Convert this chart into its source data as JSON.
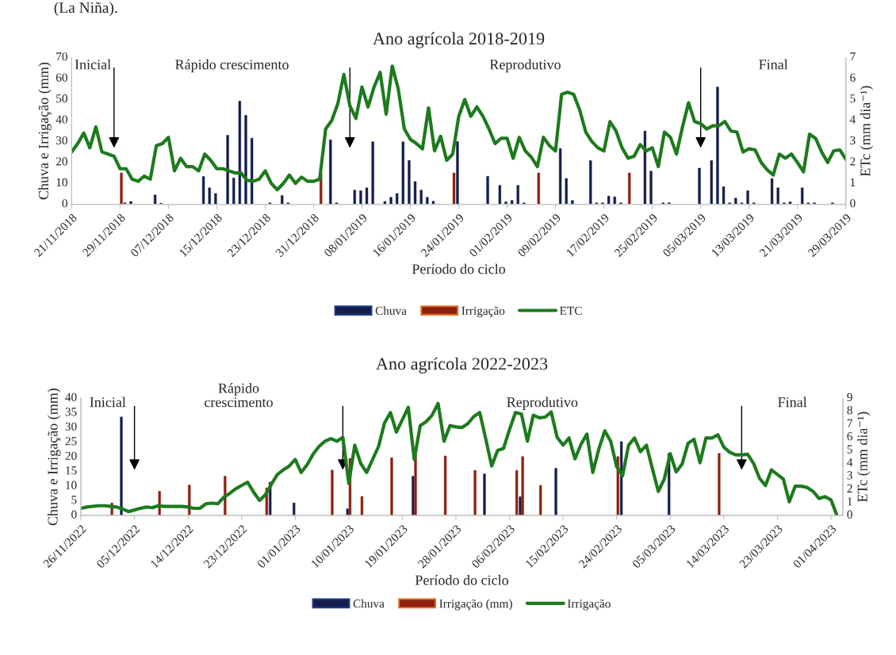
{
  "chart_data": [
    {
      "type": "bar",
      "title": "Ano agrícola 2018-2019",
      "xlabel": "Período do ciclo",
      "ylabel": "Chuva e Irrigação (mm)",
      "y2label": "ETc (mm dia⁻¹)",
      "xlim": [
        "2018-11-21",
        "2019-03-29"
      ],
      "xticks": [
        {
          "value": "2018-11-21",
          "label": "21/11/2018"
        },
        {
          "value": "2018-11-29",
          "label": "29/11/2018"
        },
        {
          "value": "2018-12-07",
          "label": "07/12/2018"
        },
        {
          "value": "2018-12-15",
          "label": "15/12/2018"
        },
        {
          "value": "2018-12-23",
          "label": "23/12/2018"
        },
        {
          "value": "2018-12-31",
          "label": "31/12/2018"
        },
        {
          "value": "2019-01-08",
          "label": "08/01/2019"
        },
        {
          "value": "2019-01-16",
          "label": "16/01/2019"
        },
        {
          "value": "2019-01-24",
          "label": "24/01/2019"
        },
        {
          "value": "2019-02-01",
          "label": "01/02/2019"
        },
        {
          "value": "2019-02-09",
          "label": "09/02/2019"
        },
        {
          "value": "2019-02-17",
          "label": "17/02/2019"
        },
        {
          "value": "2019-02-25",
          "label": "25/02/2019"
        },
        {
          "value": "2019-03-05",
          "label": "05/03/2019"
        },
        {
          "value": "2019-03-13",
          "label": "13/03/2019"
        },
        {
          "value": "2019-03-21",
          "label": "21/03/2019"
        },
        {
          "value": "2019-03-29",
          "label": "29/03/2019"
        }
      ],
      "ylim": [
        0,
        70
      ],
      "yticks": [
        0,
        10,
        20,
        30,
        40,
        50,
        60,
        70
      ],
      "y2lim": [
        0,
        7
      ],
      "y2ticks": [
        0,
        1,
        2,
        3,
        4,
        5,
        6,
        7
      ],
      "legend": "bottom",
      "series": [
        {
          "name": "Chuva",
          "color": "#141e4a",
          "x": [
            "2018-11-30",
            "2018-12-01",
            "2018-12-05",
            "2018-12-06",
            "2018-12-13",
            "2018-12-14",
            "2018-12-15",
            "2018-12-17",
            "2018-12-18",
            "2018-12-19",
            "2018-12-20",
            "2018-12-21",
            "2018-12-24",
            "2018-12-26",
            "2018-12-27",
            "2019-01-03",
            "2019-01-04",
            "2019-01-07",
            "2019-01-08",
            "2019-01-09",
            "2019-01-10",
            "2019-01-12",
            "2019-01-13",
            "2019-01-14",
            "2019-01-15",
            "2019-01-16",
            "2019-01-17",
            "2019-01-18",
            "2019-01-19",
            "2019-01-20",
            "2019-01-24",
            "2019-01-29",
            "2019-01-31",
            "2019-02-01",
            "2019-02-02",
            "2019-02-03",
            "2019-02-04",
            "2019-02-10",
            "2019-02-11",
            "2019-02-12",
            "2019-02-15",
            "2019-02-16",
            "2019-02-17",
            "2019-02-18",
            "2019-02-19",
            "2019-02-20",
            "2019-02-24",
            "2019-02-25",
            "2019-02-27",
            "2019-02-28",
            "2019-03-05",
            "2019-03-07",
            "2019-03-08",
            "2019-03-09",
            "2019-03-10",
            "2019-03-11",
            "2019-03-12",
            "2019-03-13",
            "2019-03-14",
            "2019-03-17",
            "2019-03-18",
            "2019-03-19",
            "2019-03-20",
            "2019-03-22",
            "2019-03-23",
            "2019-03-24",
            "2019-03-27"
          ],
          "values": [
            0.7,
            1.4,
            4.5,
            0.6,
            13.3,
            7.9,
            5.2,
            33,
            12.6,
            49.3,
            42.5,
            31.6,
            0.7,
            4.2,
            0.7,
            30.8,
            0.7,
            6.8,
            6.5,
            7.9,
            29.9,
            1.4,
            3.4,
            5.2,
            29.9,
            21,
            10.9,
            6.8,
            3.4,
            1.5,
            30,
            13.4,
            9.1,
            1.2,
            1.9,
            9.1,
            0.7,
            26.7,
            12.4,
            1.9,
            20.9,
            0.7,
            0.7,
            4,
            3.6,
            0.7,
            35,
            15.9,
            0.7,
            0.7,
            17.3,
            20.9,
            56,
            8.4,
            0.7,
            3,
            0.7,
            6.5,
            0.7,
            12.3,
            7.9,
            0.7,
            1.2,
            7.9,
            0.7,
            0.7,
            0.7
          ]
        },
        {
          "name": "Irrigação",
          "color": "#8b2010",
          "x": [
            "2018-11-29",
            "2019-01-01",
            "2019-01-23",
            "2019-02-06",
            "2019-02-21"
          ],
          "values": [
            15,
            15,
            15,
            15,
            15
          ]
        },
        {
          "name": "ETC",
          "type": "line",
          "axis": "y2",
          "color": "#1d7a1d",
          "x": [
            "2018-11-21",
            "2018-11-22",
            "2018-11-23",
            "2018-11-24",
            "2018-11-25",
            "2018-11-26",
            "2018-11-27",
            "2018-11-28",
            "2018-11-29",
            "2018-11-30",
            "2018-12-01",
            "2018-12-02",
            "2018-12-03",
            "2018-12-04",
            "2018-12-05",
            "2018-12-06",
            "2018-12-07",
            "2018-12-08",
            "2018-12-09",
            "2018-12-10",
            "2018-12-11",
            "2018-12-12",
            "2018-12-13",
            "2018-12-14",
            "2018-12-15",
            "2018-12-16",
            "2018-12-17",
            "2018-12-18",
            "2018-12-19",
            "2018-12-20",
            "2018-12-21",
            "2018-12-22",
            "2018-12-23",
            "2018-12-24",
            "2018-12-25",
            "2018-12-26",
            "2018-12-27",
            "2018-12-28",
            "2018-12-29",
            "2018-12-30",
            "2018-12-31",
            "2019-01-01",
            "2019-01-02",
            "2019-01-03",
            "2019-01-04",
            "2019-01-05",
            "2019-01-06",
            "2019-01-07",
            "2019-01-08",
            "2019-01-09",
            "2019-01-10",
            "2019-01-11",
            "2019-01-12",
            "2019-01-13",
            "2019-01-14",
            "2019-01-15",
            "2019-01-16",
            "2019-01-17",
            "2019-01-18",
            "2019-01-19",
            "2019-01-20",
            "2019-01-21",
            "2019-01-22",
            "2019-01-23",
            "2019-01-24",
            "2019-01-25",
            "2019-01-26",
            "2019-01-27",
            "2019-01-28",
            "2019-01-29",
            "2019-01-30",
            "2019-01-31",
            "2019-02-01",
            "2019-02-02",
            "2019-02-03",
            "2019-02-04",
            "2019-02-05",
            "2019-02-06",
            "2019-02-07",
            "2019-02-08",
            "2019-02-09",
            "2019-02-10",
            "2019-02-11",
            "2019-02-12",
            "2019-02-13",
            "2019-02-14",
            "2019-02-15",
            "2019-02-16",
            "2019-02-17",
            "2019-02-18",
            "2019-02-19",
            "2019-02-20",
            "2019-02-21",
            "2019-02-22",
            "2019-02-23",
            "2019-02-24",
            "2019-02-25",
            "2019-02-26",
            "2019-02-27",
            "2019-02-28",
            "2019-03-01",
            "2019-03-02",
            "2019-03-03",
            "2019-03-04",
            "2019-03-05",
            "2019-03-06",
            "2019-03-07",
            "2019-03-08",
            "2019-03-09",
            "2019-03-10",
            "2019-03-11",
            "2019-03-12",
            "2019-03-13",
            "2019-03-14",
            "2019-03-15",
            "2019-03-16",
            "2019-03-17",
            "2019-03-18",
            "2019-03-19",
            "2019-03-20",
            "2019-03-21",
            "2019-03-22",
            "2019-03-23",
            "2019-03-24",
            "2019-03-25",
            "2019-03-26",
            "2019-03-27",
            "2019-03-28",
            "2019-03-29"
          ],
          "values": [
            2.5,
            2.9,
            3.4,
            2.7,
            3.7,
            2.5,
            2.4,
            2.3,
            1.7,
            1.7,
            1.2,
            1.1,
            1.35,
            1.2,
            2.8,
            2.9,
            3.2,
            1.6,
            2.2,
            1.8,
            1.8,
            1.6,
            2.4,
            2.1,
            1.7,
            1.7,
            1.6,
            1.5,
            1.5,
            1.15,
            1.1,
            1.2,
            1.6,
            1,
            0.7,
            1,
            1.4,
            1,
            1.3,
            1.1,
            1.1,
            1.2,
            3.6,
            4,
            4.8,
            6.2,
            4.7,
            4.1,
            5.6,
            4.65,
            5.6,
            6.3,
            4.3,
            6.6,
            5.5,
            3.6,
            3.1,
            2.9,
            2.65,
            4.6,
            2.55,
            3.25,
            2.1,
            2.4,
            4.2,
            5,
            4.2,
            4.65,
            4.2,
            3.6,
            2.9,
            3.15,
            3.15,
            2.2,
            3.2,
            2.55,
            2.25,
            1.8,
            3.2,
            2.8,
            2.55,
            5.25,
            5.35,
            5.25,
            4.5,
            3.45,
            3,
            2.7,
            2.55,
            3.95,
            3.5,
            2.7,
            2.2,
            2.3,
            2.85,
            2.55,
            2.7,
            1.8,
            3.45,
            3.2,
            2.4,
            3.7,
            4.85,
            3.95,
            3.85,
            3.6,
            3.75,
            3.75,
            3.95,
            3.5,
            3.45,
            2.5,
            2.65,
            2.6,
            2,
            1.65,
            1.4,
            2.4,
            2.2,
            2.4,
            2,
            1.55,
            3.35,
            3.15,
            2.5,
            2,
            2.55,
            2.6,
            2.15
          ]
        }
      ],
      "ref_lines": [
        {
          "axis": "x",
          "value": "2018-11-28"
        },
        {
          "axis": "x",
          "value": "2019-01-06"
        },
        {
          "axis": "x",
          "value": "2019-03-05"
        }
      ],
      "annotations": [
        "(La Niña).",
        "Inicial",
        "Rápido crescimento",
        "Reprodutivo",
        "Final"
      ]
    },
    {
      "type": "bar",
      "title": "Ano agrícola 2022-2023",
      "xlabel": "Período do ciclo",
      "ylabel": "Chuva e Irrigação (mm)",
      "y2label": "ETc (mm dia⁻¹)",
      "xlim": [
        "2022-11-26",
        "2023-04-03"
      ],
      "xticks": [
        {
          "value": "2022-11-26",
          "label": "26/11/2022"
        },
        {
          "value": "2022-12-05",
          "label": "05/12/2022"
        },
        {
          "value": "2022-12-14",
          "label": "14/12/2022"
        },
        {
          "value": "2022-12-23",
          "label": "23/12/2022"
        },
        {
          "value": "2023-01-01",
          "label": "01/01/2023"
        },
        {
          "value": "2023-01-10",
          "label": "10/01/2023"
        },
        {
          "value": "2023-01-19",
          "label": "19/01/2023"
        },
        {
          "value": "2023-01-28",
          "label": "28/01/2023"
        },
        {
          "value": "2023-02-06",
          "label": "06/02/2023"
        },
        {
          "value": "2023-02-15",
          "label": "15/02/2023"
        },
        {
          "value": "2023-02-24",
          "label": "24/02/2023"
        },
        {
          "value": "2023-03-05",
          "label": "05/03/2023"
        },
        {
          "value": "2023-03-14",
          "label": "14/03/2023"
        },
        {
          "value": "2023-03-23",
          "label": "23/03/2023"
        },
        {
          "value": "2023-04-01",
          "label": "01/04/2023"
        }
      ],
      "ylim": [
        0,
        40
      ],
      "yticks": [
        0,
        5,
        10,
        15,
        20,
        25,
        30,
        35,
        40
      ],
      "y2lim": [
        0,
        9
      ],
      "y2ticks": [
        0,
        1,
        2,
        3,
        4,
        5,
        6,
        7,
        8,
        9
      ],
      "legend": "bottom",
      "series": [
        {
          "name": "Chuva",
          "color": "#141e4a",
          "x": [
            "2022-12-03",
            "2022-12-28",
            "2023-01-01",
            "2023-01-10",
            "2023-01-21",
            "2023-02-02",
            "2023-02-08",
            "2023-02-14",
            "2023-02-25",
            "2023-03-05"
          ],
          "values": [
            33.6,
            11.4,
            4.3,
            2.3,
            13.4,
            14.2,
            6.4,
            16.1,
            25.2,
            21.2
          ]
        },
        {
          "name": "Irrigação (mm)",
          "color": "#8b2010",
          "x": [
            "2022-12-01",
            "2022-12-09",
            "2022-12-14",
            "2022-12-20",
            "2022-12-27",
            "2023-01-07",
            "2023-01-10",
            "2023-01-12",
            "2023-01-17",
            "2023-01-21",
            "2023-01-26",
            "2023-01-31",
            "2023-02-07",
            "2023-02-08",
            "2023-02-11",
            "2023-02-24",
            "2023-03-13"
          ],
          "values": [
            4.3,
            8.3,
            10.4,
            13.4,
            9.4,
            15.5,
            19.5,
            6.5,
            19.7,
            20.5,
            20.3,
            15.4,
            15.4,
            20.1,
            10.3,
            20.1,
            21.2
          ]
        },
        {
          "name": "Irrigação",
          "type": "line",
          "axis": "y2",
          "color": "#1d7a1d",
          "x": [
            "2022-11-26",
            "2022-11-27",
            "2022-11-29",
            "2022-11-30",
            "2022-12-01",
            "2022-12-02",
            "2022-12-03",
            "2022-12-04",
            "2022-12-06",
            "2022-12-07",
            "2022-12-08",
            "2022-12-09",
            "2022-12-10",
            "2022-12-12",
            "2022-12-13",
            "2022-12-14",
            "2022-12-15",
            "2022-12-16",
            "2022-12-17",
            "2022-12-18",
            "2022-12-19",
            "2022-12-20",
            "2022-12-21",
            "2022-12-22",
            "2022-12-23",
            "2022-12-24",
            "2022-12-25",
            "2022-12-26",
            "2022-12-27",
            "2022-12-28",
            "2022-12-29",
            "2022-12-30",
            "2022-12-31",
            "2023-01-01",
            "2023-01-02",
            "2023-01-03",
            "2023-01-04",
            "2023-01-05",
            "2023-01-06",
            "2023-01-07",
            "2023-01-08",
            "2023-01-09",
            "2023-01-10",
            "2023-01-11",
            "2023-01-12",
            "2023-01-13",
            "2023-01-15",
            "2023-01-16",
            "2023-01-17",
            "2023-01-18",
            "2023-01-20",
            "2023-01-21",
            "2023-01-22",
            "2023-01-23",
            "2023-01-24",
            "2023-01-25",
            "2023-01-26",
            "2023-01-27",
            "2023-01-28",
            "2023-01-29",
            "2023-01-30",
            "2023-01-31",
            "2023-02-01",
            "2023-02-02",
            "2023-02-03",
            "2023-02-04",
            "2023-02-05",
            "2023-02-06",
            "2023-02-07",
            "2023-02-08",
            "2023-02-09",
            "2023-02-10",
            "2023-02-11",
            "2023-02-12",
            "2023-02-13",
            "2023-02-14",
            "2023-02-15",
            "2023-02-16",
            "2023-02-17",
            "2023-02-18",
            "2023-02-19",
            "2023-02-20",
            "2023-02-21",
            "2023-02-22",
            "2023-02-23",
            "2023-02-24",
            "2023-02-25",
            "2023-02-26",
            "2023-02-27",
            "2023-02-28",
            "2023-03-01",
            "2023-03-02",
            "2023-03-03",
            "2023-03-04",
            "2023-03-05",
            "2023-03-06",
            "2023-03-07",
            "2023-03-08",
            "2023-03-09",
            "2023-03-10",
            "2023-03-11",
            "2023-03-12",
            "2023-03-13",
            "2023-03-14",
            "2023-03-15",
            "2023-03-16",
            "2023-03-17",
            "2023-03-18",
            "2023-03-19",
            "2023-03-20",
            "2023-03-21",
            "2023-03-22",
            "2023-03-23",
            "2023-03-24",
            "2023-03-25",
            "2023-03-26",
            "2023-03-27",
            "2023-03-28",
            "2023-03-29",
            "2023-03-30",
            "2023-03-31",
            "2023-04-01",
            "2023-04-02"
          ],
          "values": [
            0.55,
            0.65,
            0.75,
            0.75,
            0.7,
            0.65,
            0.5,
            0.3,
            0.55,
            0.65,
            0.6,
            0.75,
            0.7,
            0.7,
            0.7,
            0.65,
            0.55,
            0.55,
            0.9,
            0.95,
            0.9,
            1.4,
            1.7,
            2.05,
            2.3,
            2.55,
            1.8,
            1.15,
            1.6,
            2.4,
            3.15,
            3.5,
            3.8,
            4.3,
            3.3,
            3.9,
            4.7,
            5.3,
            5.7,
            5.9,
            5.7,
            6,
            2.45,
            5.4,
            4,
            3.3,
            5.3,
            7.1,
            7.9,
            6.4,
            8.3,
            4.3,
            6.9,
            7.2,
            7.7,
            8.6,
            5.7,
            6.9,
            6.8,
            6.75,
            7.05,
            7.6,
            7.9,
            5.9,
            3.8,
            5,
            5.15,
            6.6,
            7.9,
            7.8,
            5.7,
            7.7,
            7.5,
            7.55,
            7.95,
            6,
            5.4,
            5.95,
            4.35,
            5.45,
            6.25,
            3.3,
            5.1,
            6.5,
            5.7,
            3.75,
            3.05,
            5.4,
            5.95,
            4.9,
            5.4,
            3.6,
            1.85,
            2.8,
            4.75,
            3.35,
            3.95,
            5.55,
            5.85,
            4.05,
            5.95,
            5.95,
            6.2,
            5.25,
            4.85,
            4.65,
            4.65,
            4.7,
            4,
            2.85,
            2.3,
            3.5,
            3.15,
            2.8,
            1.05,
            2.25,
            2.25,
            2.15,
            1.85,
            1.3,
            1.45,
            1.2,
            0
          ]
        }
      ],
      "ref_lines": [
        {
          "axis": "x",
          "value": "2022-12-05"
        },
        {
          "axis": "x",
          "value": "2023-01-09"
        },
        {
          "axis": "x",
          "value": "2023-03-17"
        }
      ],
      "annotations": [
        "Inicial",
        "Rápido\ncrescimento",
        "Reprodutivo",
        "Final"
      ]
    }
  ]
}
